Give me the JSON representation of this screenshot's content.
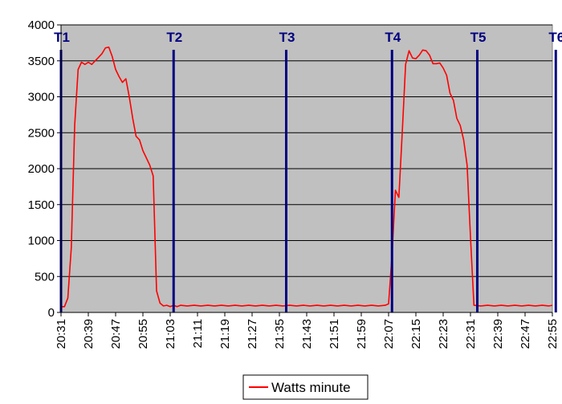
{
  "chart_data": {
    "type": "line",
    "title": "",
    "xlabel": "",
    "ylabel": "",
    "ylim": [
      0,
      4000
    ],
    "y_ticks": [
      0,
      500,
      1000,
      1500,
      2000,
      2500,
      3000,
      3500,
      4000
    ],
    "x_range_minutes": [
      0,
      144
    ],
    "x_tick_labels": [
      "20:31",
      "20:39",
      "20:47",
      "20:55",
      "21:03",
      "21:11",
      "21:19",
      "21:27",
      "21:35",
      "21:43",
      "21:51",
      "21:59",
      "22:07",
      "22:15",
      "22:23",
      "22:31",
      "22:39",
      "22:47",
      "22:55"
    ],
    "grid": true,
    "plot_background": "#c0c0c0",
    "legend": {
      "position": "bottom",
      "entries": [
        "Watts minute"
      ]
    },
    "markers": [
      {
        "label": "T1",
        "time": "20:31"
      },
      {
        "label": "T2",
        "time": "21:04"
      },
      {
        "label": "T3",
        "time": "21:37"
      },
      {
        "label": "T4",
        "time": "22:08"
      },
      {
        "label": "T5",
        "time": "22:33"
      },
      {
        "label": "T6",
        "time": "22:56"
      }
    ],
    "marker_color": "#000080",
    "series": [
      {
        "name": "Watts minute",
        "color": "#ff0000",
        "points": [
          [
            "20:31",
            80
          ],
          [
            "20:32",
            80
          ],
          [
            "20:33",
            200
          ],
          [
            "20:34",
            900
          ],
          [
            "20:35",
            2600
          ],
          [
            "20:36",
            3380
          ],
          [
            "20:37",
            3480
          ],
          [
            "20:38",
            3450
          ],
          [
            "20:39",
            3480
          ],
          [
            "20:40",
            3450
          ],
          [
            "20:41",
            3500
          ],
          [
            "20:42",
            3550
          ],
          [
            "20:43",
            3600
          ],
          [
            "20:44",
            3680
          ],
          [
            "20:45",
            3690
          ],
          [
            "20:46",
            3560
          ],
          [
            "20:47",
            3380
          ],
          [
            "20:48",
            3280
          ],
          [
            "20:49",
            3200
          ],
          [
            "20:50",
            3250
          ],
          [
            "20:51",
            3000
          ],
          [
            "20:52",
            2700
          ],
          [
            "20:53",
            2450
          ],
          [
            "20:54",
            2400
          ],
          [
            "20:55",
            2250
          ],
          [
            "20:56",
            2150
          ],
          [
            "20:57",
            2050
          ],
          [
            "20:58",
            1900
          ],
          [
            "20:59",
            300
          ],
          [
            "21:00",
            130
          ],
          [
            "21:01",
            90
          ],
          [
            "21:02",
            100
          ],
          [
            "21:03",
            80
          ],
          [
            "21:04",
            100
          ],
          [
            "21:05",
            80
          ],
          [
            "21:06",
            100
          ],
          [
            "21:08",
            90
          ],
          [
            "21:10",
            100
          ],
          [
            "21:12",
            90
          ],
          [
            "21:14",
            100
          ],
          [
            "21:16",
            90
          ],
          [
            "21:18",
            100
          ],
          [
            "21:20",
            90
          ],
          [
            "21:22",
            100
          ],
          [
            "21:24",
            90
          ],
          [
            "21:26",
            100
          ],
          [
            "21:28",
            90
          ],
          [
            "21:30",
            100
          ],
          [
            "21:32",
            90
          ],
          [
            "21:34",
            100
          ],
          [
            "21:36",
            90
          ],
          [
            "21:38",
            100
          ],
          [
            "21:40",
            90
          ],
          [
            "21:42",
            100
          ],
          [
            "21:44",
            90
          ],
          [
            "21:46",
            100
          ],
          [
            "21:48",
            90
          ],
          [
            "21:50",
            100
          ],
          [
            "21:52",
            90
          ],
          [
            "21:54",
            100
          ],
          [
            "21:56",
            90
          ],
          [
            "21:58",
            100
          ],
          [
            "22:00",
            90
          ],
          [
            "22:02",
            100
          ],
          [
            "22:04",
            90
          ],
          [
            "22:06",
            100
          ],
          [
            "22:07",
            120
          ],
          [
            "22:08",
            800
          ],
          [
            "22:09",
            1700
          ],
          [
            "22:10",
            1600
          ],
          [
            "22:11",
            2500
          ],
          [
            "22:12",
            3450
          ],
          [
            "22:13",
            3640
          ],
          [
            "22:14",
            3540
          ],
          [
            "22:15",
            3530
          ],
          [
            "22:16",
            3580
          ],
          [
            "22:17",
            3650
          ],
          [
            "22:18",
            3640
          ],
          [
            "22:19",
            3580
          ],
          [
            "22:20",
            3460
          ],
          [
            "22:21",
            3460
          ],
          [
            "22:22",
            3470
          ],
          [
            "22:23",
            3400
          ],
          [
            "22:24",
            3300
          ],
          [
            "22:25",
            3050
          ],
          [
            "22:26",
            2950
          ],
          [
            "22:27",
            2700
          ],
          [
            "22:28",
            2600
          ],
          [
            "22:29",
            2400
          ],
          [
            "22:30",
            2050
          ],
          [
            "22:31",
            1050
          ],
          [
            "22:32",
            100
          ],
          [
            "22:34",
            90
          ],
          [
            "22:36",
            100
          ],
          [
            "22:38",
            90
          ],
          [
            "22:40",
            100
          ],
          [
            "22:42",
            90
          ],
          [
            "22:44",
            100
          ],
          [
            "22:46",
            90
          ],
          [
            "22:48",
            100
          ],
          [
            "22:50",
            90
          ],
          [
            "22:52",
            100
          ],
          [
            "22:54",
            90
          ],
          [
            "22:55",
            100
          ]
        ]
      }
    ]
  }
}
